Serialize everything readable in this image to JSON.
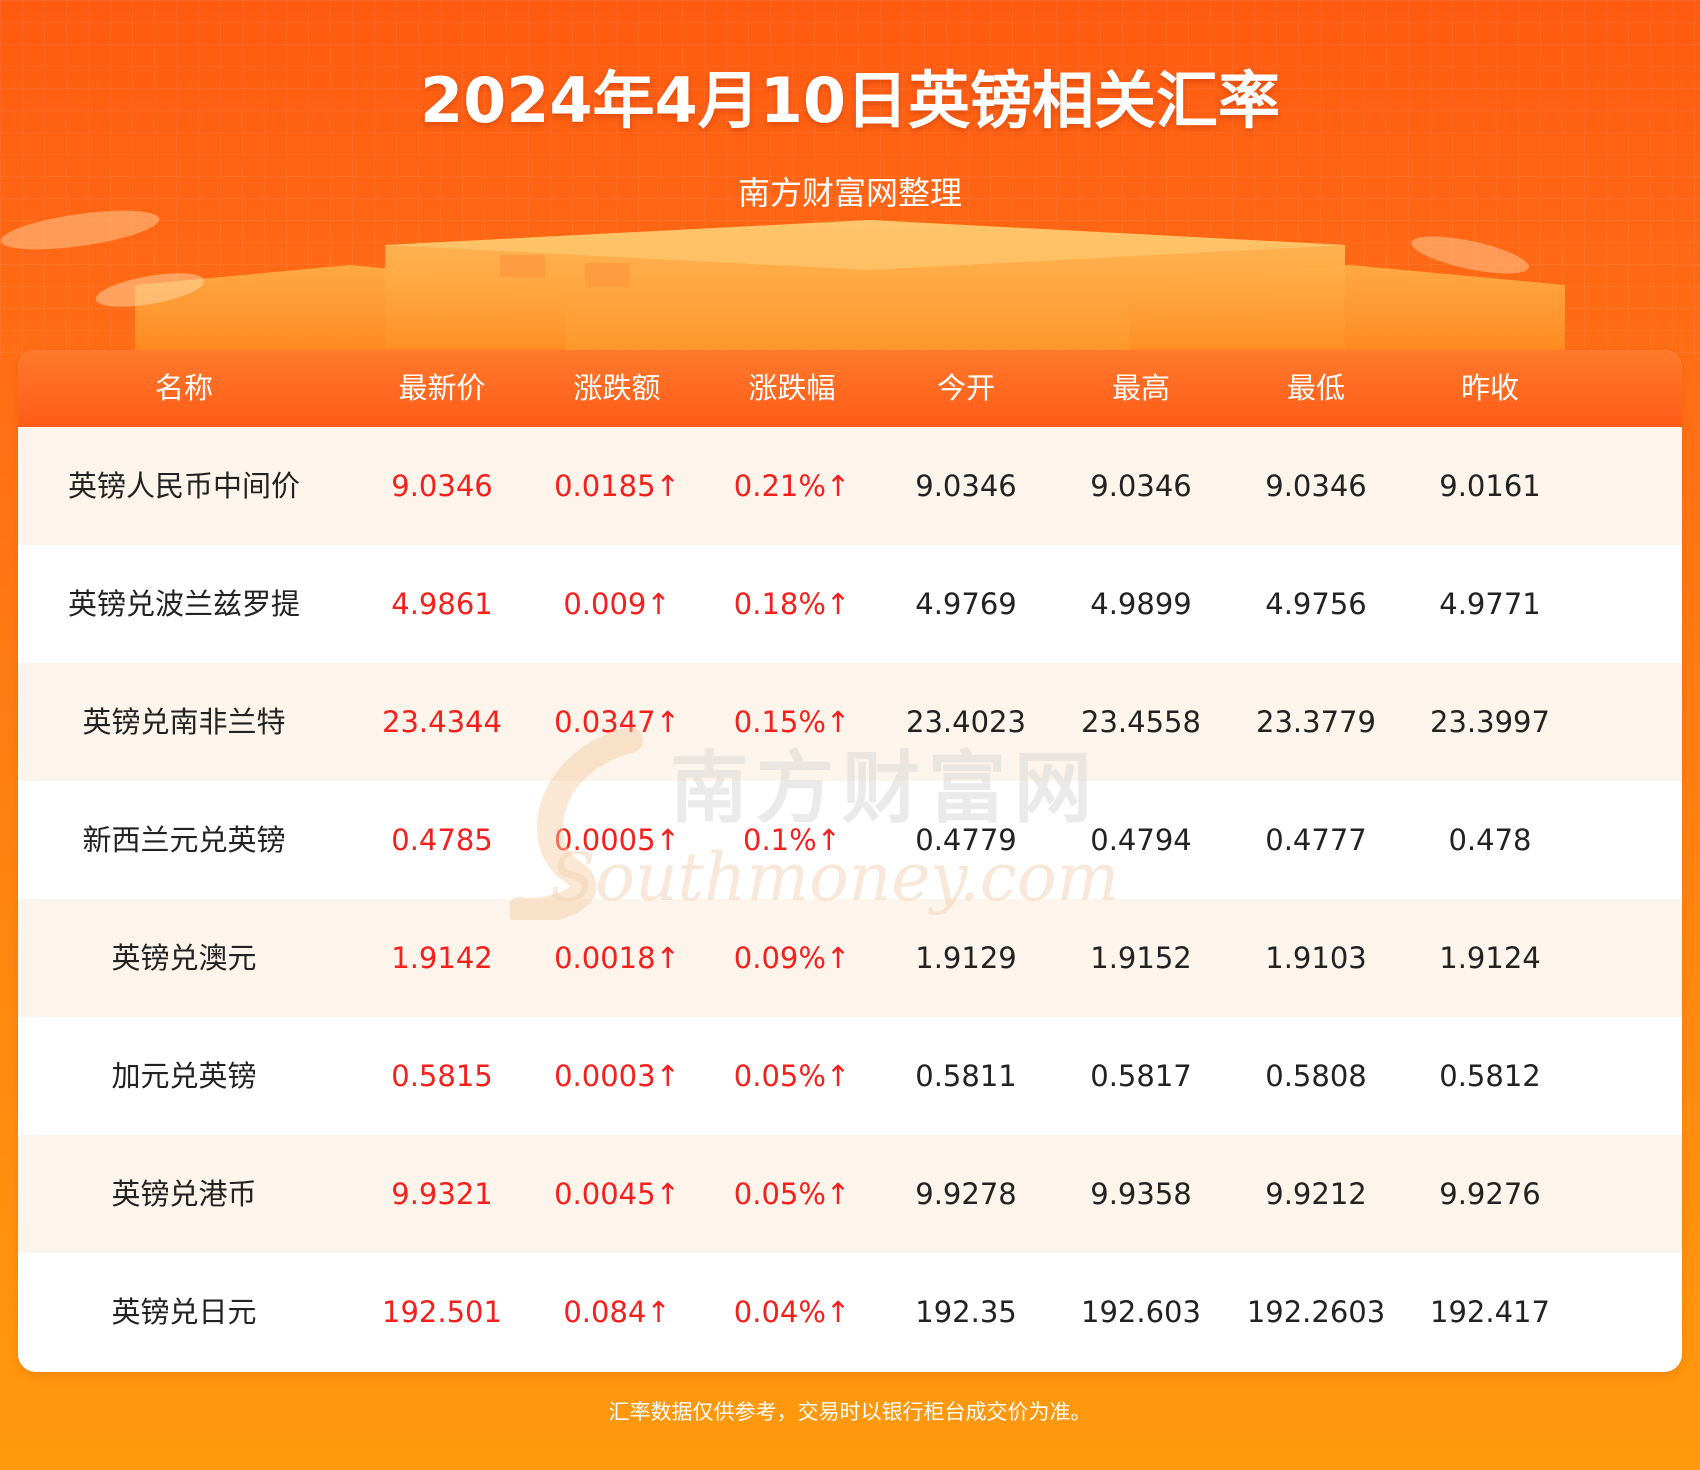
{
  "title": "2024年4月10日英镑相关汇率",
  "subtitle": "南方财富网整理",
  "watermark": {
    "cn": "南方财富网",
    "en": "Southmoney.com"
  },
  "colors": {
    "header": "#ff5b17",
    "up": "#f5201c",
    "row_alt": "#fdf4ec"
  },
  "table": {
    "headers": [
      "名称",
      "最新价",
      "涨跌额",
      "涨跌幅",
      "今开",
      "最高",
      "最低",
      "昨收"
    ],
    "rows": [
      [
        "英镑人民币中间价",
        "9.0346",
        "0.0185↑",
        "0.21%↑",
        "9.0346",
        "9.0346",
        "9.0346",
        "9.0161"
      ],
      [
        "英镑兑波兰兹罗提",
        "4.9861",
        "0.009↑",
        "0.18%↑",
        "4.9769",
        "4.9899",
        "4.9756",
        "4.9771"
      ],
      [
        "英镑兑南非兰特",
        "23.4344",
        "0.0347↑",
        "0.15%↑",
        "23.4023",
        "23.4558",
        "23.3779",
        "23.3997"
      ],
      [
        "新西兰元兑英镑",
        "0.4785",
        "0.0005↑",
        "0.1%↑",
        "0.4779",
        "0.4794",
        "0.4777",
        "0.478"
      ],
      [
        "英镑兑澳元",
        "1.9142",
        "0.0018↑",
        "0.09%↑",
        "1.9129",
        "1.9152",
        "1.9103",
        "1.9124"
      ],
      [
        "加元兑英镑",
        "0.5815",
        "0.0003↑",
        "0.05%↑",
        "0.5811",
        "0.5817",
        "0.5808",
        "0.5812"
      ],
      [
        "英镑兑港币",
        "9.9321",
        "0.0045↑",
        "0.05%↑",
        "9.9278",
        "9.9358",
        "9.9212",
        "9.9276"
      ],
      [
        "英镑兑日元",
        "192.501",
        "0.084↑",
        "0.04%↑",
        "192.35",
        "192.603",
        "192.2603",
        "192.417"
      ]
    ]
  },
  "footer": "汇率数据仅供参考，交易时以银行柜台成交价为准。"
}
